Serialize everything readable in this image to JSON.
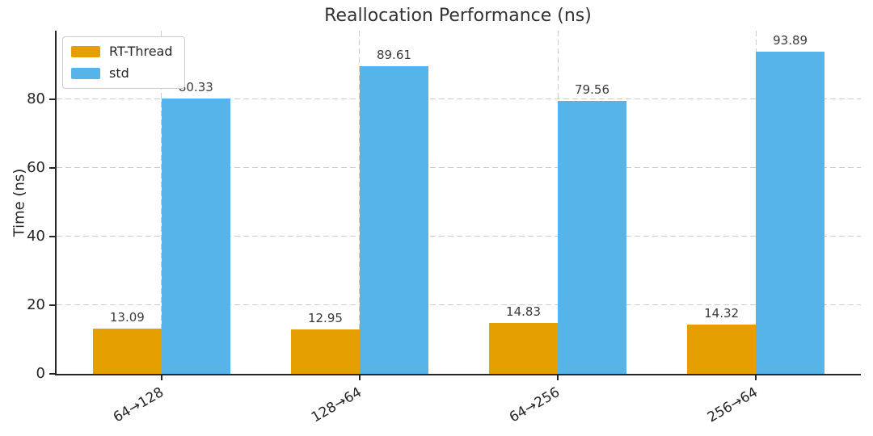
{
  "chart_data": {
    "type": "bar",
    "title": "Reallocation Performance (ns)",
    "xlabel": "",
    "ylabel": "Time (ns)",
    "categories": [
      "64→128",
      "128→64",
      "64→256",
      "256→64"
    ],
    "series": [
      {
        "name": "RT-Thread",
        "color": "#E69F00",
        "values": [
          13.09,
          12.95,
          14.83,
          14.32
        ],
        "value_labels": [
          "13.09",
          "12.95",
          "14.83",
          "14.32"
        ]
      },
      {
        "name": "std",
        "color": "#56B4E9",
        "values": [
          80.33,
          89.61,
          79.56,
          93.89
        ],
        "value_labels": [
          "80.33",
          "89.61",
          "79.56",
          "93.89"
        ]
      }
    ],
    "ylim": [
      0,
      100
    ],
    "yticks": [
      0,
      20,
      40,
      60,
      80
    ],
    "ytick_labels": [
      "0",
      "20",
      "40",
      "60",
      "80"
    ],
    "grid": "dashed",
    "grid_axes": "both",
    "legend_position": "upper-left",
    "colors": {
      "axis": "#262626",
      "grid": "#cccccc",
      "text": "#333333",
      "background": "#ffffff"
    }
  }
}
